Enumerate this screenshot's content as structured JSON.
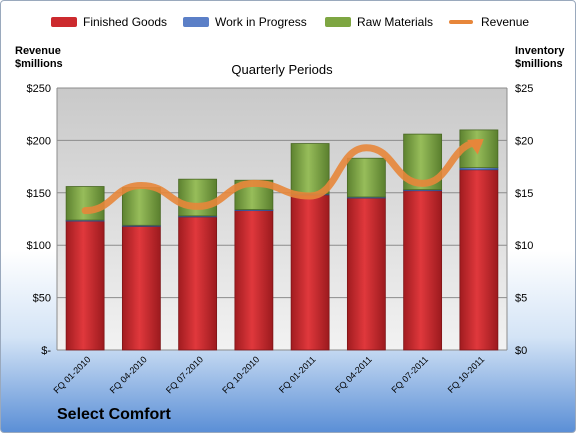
{
  "company": "Select Comfort",
  "colors": {
    "finished": "#cc2a2e",
    "wip": "#5b7fc7",
    "raw": "#7ea642",
    "revenue": "#e7863a"
  },
  "chart_data": {
    "type": "bar",
    "subtype": "stacked bar with line overlay, dual axis",
    "title": "Quarterly Periods",
    "y_left_label": "Revenue\n$millions",
    "y_right_label": "Inventory\n$millions",
    "categories": [
      "FQ 01-2010",
      "FQ 04-2010",
      "FQ 07-2010",
      "FQ 10-2010",
      "FQ 01-2011",
      "FQ 04-2011",
      "FQ 07-2011",
      "FQ 10-2011"
    ],
    "y_left_ticks": [
      "$-",
      "$50",
      "$100",
      "$150",
      "$200",
      "$250"
    ],
    "y_right_ticks": [
      "$0",
      "$5",
      "$10",
      "$15",
      "$20",
      "$25"
    ],
    "y_left_range": [
      0,
      250
    ],
    "y_right_range": [
      0,
      25
    ],
    "legend_position": "top",
    "grid": true,
    "series": [
      {
        "name": "Finished Goods",
        "axis": "right",
        "kind": "stacked-bar",
        "values": [
          12.3,
          11.8,
          12.7,
          13.3,
          14.8,
          14.5,
          15.2,
          17.2
        ]
      },
      {
        "name": "Work in Progress",
        "axis": "right",
        "kind": "stacked-bar",
        "values": [
          0.1,
          0.1,
          0.1,
          0.1,
          0.1,
          0.1,
          0.1,
          0.2
        ]
      },
      {
        "name": "Raw Materials",
        "axis": "right",
        "kind": "stacked-bar",
        "values": [
          3.2,
          3.6,
          3.5,
          2.8,
          4.8,
          3.7,
          5.3,
          3.6
        ]
      },
      {
        "name": "Revenue",
        "axis": "left",
        "kind": "line",
        "values": [
          133,
          157,
          137,
          159,
          147,
          193,
          159,
          198
        ]
      }
    ]
  }
}
